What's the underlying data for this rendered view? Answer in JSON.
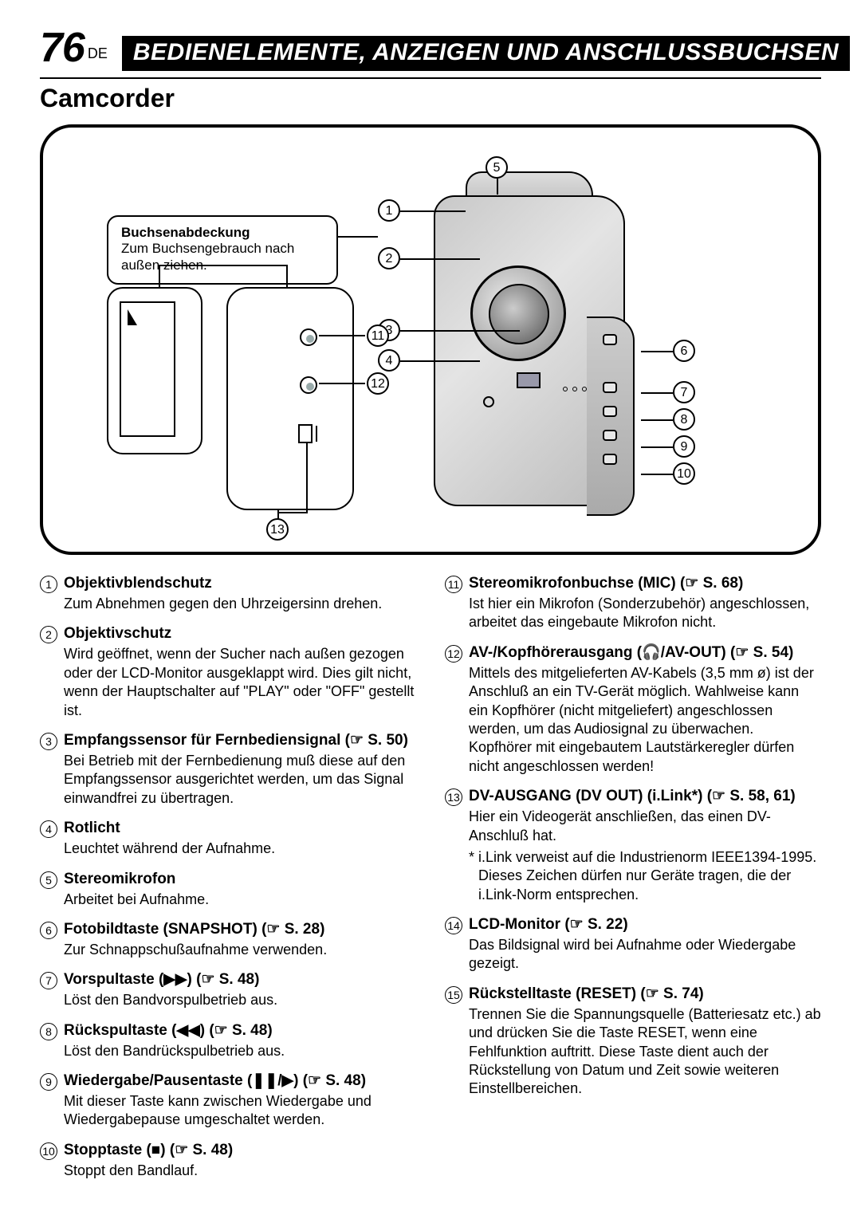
{
  "page_number": "76",
  "language_code": "DE",
  "header_title": "BEDIENELEMENTE, ANZEIGEN UND ANSCHLUSSBUCHSEN",
  "subtitle": "Camcorder",
  "diagram": {
    "label_title": "Buchsenabdeckung",
    "label_text": "Zum Buchsengebrauch nach außen ziehen.",
    "callouts": [
      "1",
      "2",
      "3",
      "4",
      "5",
      "6",
      "7",
      "8",
      "9",
      "10",
      "11",
      "12",
      "13"
    ]
  },
  "left_items": [
    {
      "n": "1",
      "title": "Objektivblendschutz",
      "ref": "",
      "desc": "Zum Abnehmen gegen den Uhrzeigersinn drehen."
    },
    {
      "n": "2",
      "title": "Objektivschutz",
      "ref": "",
      "desc": "Wird geöffnet, wenn der Sucher nach außen gezogen oder der LCD-Monitor ausgeklappt wird. Dies gilt nicht, wenn der Hauptschalter auf \"PLAY\" oder \"OFF\" gestellt ist."
    },
    {
      "n": "3",
      "title": "Empfangssensor für Fernbediensignal",
      "ref": "(☞ S. 50)",
      "desc": "Bei Betrieb mit der Fernbedienung muß diese auf den Empfangssensor ausgerichtet werden, um das Signal einwandfrei zu übertragen."
    },
    {
      "n": "4",
      "title": "Rotlicht",
      "ref": "",
      "desc": "Leuchtet während der Aufnahme."
    },
    {
      "n": "5",
      "title": "Stereomikrofon",
      "ref": "",
      "desc": "Arbeitet bei Aufnahme."
    },
    {
      "n": "6",
      "title": "Fotobildtaste (SNAPSHOT)",
      "ref": "(☞ S. 28)",
      "desc": "Zur Schnappschußaufnahme verwenden."
    },
    {
      "n": "7",
      "title": "Vorspultaste (▶▶)",
      "ref": "(☞ S. 48)",
      "desc": "Löst den Bandvorspulbetrieb aus."
    },
    {
      "n": "8",
      "title": "Rückspultaste (◀◀)",
      "ref": "(☞ S. 48)",
      "desc": "Löst den Bandrückspulbetrieb aus."
    },
    {
      "n": "9",
      "title": "Wiedergabe/Pausentaste (❚❚/▶)",
      "ref": "(☞ S. 48)",
      "desc": "Mit dieser Taste kann zwischen Wiedergabe und Wiedergabepause umgeschaltet werden."
    },
    {
      "n": "10",
      "title": "Stopptaste (■)",
      "ref": "(☞ S. 48)",
      "desc": "Stoppt den Bandlauf."
    }
  ],
  "right_items": [
    {
      "n": "11",
      "title": "Stereomikrofonbuchse (MIC)",
      "ref": "(☞ S. 68)",
      "desc": "Ist hier ein Mikrofon (Sonderzubehör) angeschlossen, arbeitet das eingebaute Mikrofon nicht."
    },
    {
      "n": "12",
      "title": "AV-/Kopfhörerausgang (🎧/AV-OUT)",
      "ref": "(☞ S. 54)",
      "desc": "Mittels des mitgelieferten AV-Kabels (3,5 mm ø) ist der Anschluß an ein TV-Gerät möglich. Wahlweise kann ein Kopfhörer (nicht mitgeliefert) angeschlossen werden, um das Audiosignal zu überwachen.\nKopfhörer mit eingebautem Lautstärkeregler dürfen nicht angeschlossen werden!"
    },
    {
      "n": "13",
      "title": "DV-AUSGANG (DV OUT) (i.Link*)",
      "ref": "(☞ S. 58, 61)",
      "desc": "Hier ein Videogerät anschließen, das einen DV-Anschluß hat.",
      "footnote": "* i.Link verweist auf die Industrienorm IEEE1394-1995. Dieses Zeichen dürfen  nur Geräte tragen, die der i.Link-Norm entsprechen."
    },
    {
      "n": "14",
      "title": "LCD-Monitor",
      "ref": "(☞ S. 22)",
      "desc": "Das Bildsignal wird bei Aufnahme oder Wiedergabe gezeigt."
    },
    {
      "n": "15",
      "title": "Rückstelltaste (RESET)",
      "ref": "(☞ S. 74)",
      "desc": "Trennen Sie die Spannungsquelle (Batteriesatz etc.) ab und drücken Sie die Taste RESET, wenn eine Fehlfunktion auftritt. Diese Taste dient auch der Rückstellung von Datum und Zeit sowie weiteren Einstellbereichen."
    }
  ]
}
